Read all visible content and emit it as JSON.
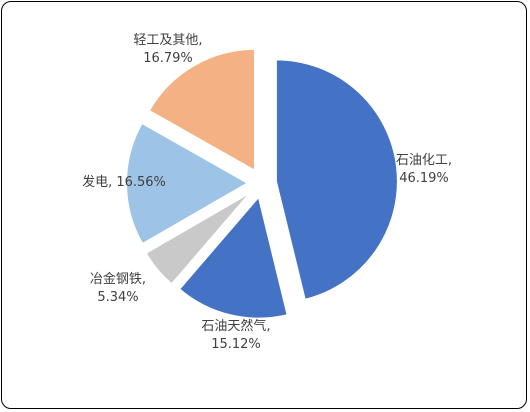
{
  "chart_data": {
    "type": "pie",
    "categories": [
      "石油化工",
      "石油天然气",
      "冶金钢铁",
      "发电",
      "轻工及其他"
    ],
    "values": [
      46.19,
      15.12,
      5.34,
      16.56,
      16.79
    ],
    "labels": [
      [
        "石油化工,",
        "46.19%"
      ],
      [
        "石油天然气,",
        "15.12%"
      ],
      [
        "冶金钢铁,",
        "5.34%"
      ],
      [
        "发电, 16.56%"
      ],
      [
        "轻工及其他,",
        "16.79%"
      ]
    ],
    "colors": [
      "#4472C4",
      "#4472C4",
      "#C9C9C9",
      "#9DC3E6",
      "#F4B183"
    ],
    "exploded": true
  }
}
